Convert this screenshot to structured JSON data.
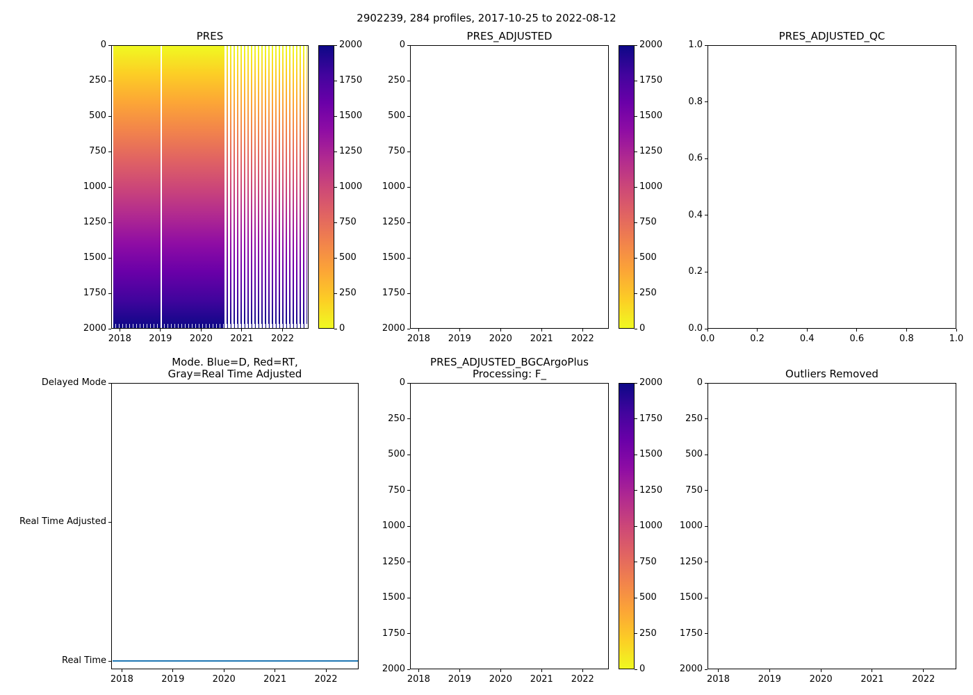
{
  "figure": {
    "suptitle": "2902239, 284 profiles, 2017-10-25 to 2022-08-12"
  },
  "palette": {
    "plasma_low_to_high": [
      "#0d0887",
      "#41049d",
      "#6a00a8",
      "#8f0da4",
      "#b12a90",
      "#cc4778",
      "#e16462",
      "#f2844b",
      "#fca636",
      "#fcce25",
      "#f0f921"
    ],
    "series_blue": "#1f77b4",
    "axis_color": "#000000",
    "background": "#ffffff"
  },
  "chart_data": [
    {
      "name": "PRES",
      "type": "heatmap",
      "title": "PRES",
      "x": {
        "range": [
          2017.79,
          2022.64
        ],
        "tick_values": [
          2018,
          2019,
          2020,
          2021,
          2022
        ],
        "tick_labels": [
          "2018",
          "2019",
          "2020",
          "2021",
          "2022"
        ]
      },
      "y": {
        "range": [
          0,
          2000
        ],
        "inverted": true,
        "tick_values": [
          0,
          250,
          500,
          750,
          1000,
          1250,
          1500,
          1750,
          2000
        ],
        "tick_labels": [
          "0",
          "250",
          "500",
          "750",
          "1000",
          "1250",
          "1500",
          "1750",
          "2000"
        ]
      },
      "colorbar": {
        "range": [
          0,
          2000
        ],
        "colormap": "plasma_r",
        "tick_values": [
          0,
          250,
          500,
          750,
          1000,
          1250,
          1500,
          1750,
          2000
        ],
        "tick_labels": [
          "0",
          "250",
          "500",
          "750",
          "1000",
          "1250",
          "1500",
          "1750",
          "2000"
        ]
      },
      "heatmap": {
        "present": true,
        "colormap": "plasma_r",
        "value_description": "pressure (dbar) increases with vertical level: 0 (yellow) at surface to 2000 (dark navy) at depth",
        "data_start": 2017.82,
        "data_end": 2022.62,
        "vertical_gap_at": 2019.0,
        "sparse_striping_from": 2020.55
      }
    },
    {
      "name": "PRES_ADJUSTED",
      "type": "heatmap",
      "title": "PRES_ADJUSTED",
      "x": {
        "range": [
          2017.79,
          2022.64
        ],
        "tick_values": [
          2018,
          2019,
          2020,
          2021,
          2022
        ],
        "tick_labels": [
          "2018",
          "2019",
          "2020",
          "2021",
          "2022"
        ]
      },
      "y": {
        "range": [
          0,
          2000
        ],
        "inverted": true,
        "tick_values": [
          0,
          250,
          500,
          750,
          1000,
          1250,
          1500,
          1750,
          2000
        ],
        "tick_labels": [
          "0",
          "250",
          "500",
          "750",
          "1000",
          "1250",
          "1500",
          "1750",
          "2000"
        ]
      },
      "colorbar": {
        "range": [
          0,
          2000
        ],
        "colormap": "plasma_r",
        "tick_values": [
          0,
          250,
          500,
          750,
          1000,
          1250,
          1500,
          1750,
          2000
        ],
        "tick_labels": [
          "0",
          "250",
          "500",
          "750",
          "1000",
          "1250",
          "1500",
          "1750",
          "2000"
        ]
      },
      "heatmap": {
        "present": false
      }
    },
    {
      "name": "PRES_ADJUSTED_QC",
      "type": "scatter",
      "title": "PRES_ADJUSTED_QC",
      "x": {
        "range": [
          0,
          1
        ],
        "tick_values": [
          0,
          0.2,
          0.4,
          0.6,
          0.8,
          1
        ],
        "tick_labels": [
          "0.0",
          "0.2",
          "0.4",
          "0.6",
          "0.8",
          "1.0"
        ]
      },
      "y": {
        "range": [
          0,
          1
        ],
        "inverted": false,
        "tick_values": [
          0,
          0.2,
          0.4,
          0.6,
          0.8,
          1
        ],
        "tick_labels": [
          "0.0",
          "0.2",
          "0.4",
          "0.6",
          "0.8",
          "1.0"
        ]
      },
      "points": []
    },
    {
      "name": "MODE",
      "type": "line",
      "title_lines": [
        "Mode. Blue=D, Red=RT,",
        "Gray=Real Time Adjusted"
      ],
      "x": {
        "range": [
          2017.79,
          2022.64
        ],
        "tick_values": [
          2018,
          2019,
          2020,
          2021,
          2022
        ],
        "tick_labels": [
          "2018",
          "2019",
          "2020",
          "2021",
          "2022"
        ]
      },
      "y": {
        "range": [
          -0.06,
          2
        ],
        "inverted": false,
        "tick_values": [
          2,
          1,
          0
        ],
        "tick_labels": [
          "Delayed Mode",
          "Real Time Adjusted",
          "Real Time"
        ]
      },
      "series": [
        {
          "label": "Real Time",
          "y_value": 0,
          "x_start": 2017.82,
          "x_end": 2022.62,
          "color": "#1f77b4",
          "linewidth": 2
        }
      ]
    },
    {
      "name": "PRES_ADJUSTED_BGCArgoPlus",
      "type": "heatmap",
      "title_lines": [
        "PRES_ADJUSTED_BGCArgoPlus",
        "Processing: F_"
      ],
      "x": {
        "range": [
          2017.79,
          2022.64
        ],
        "tick_values": [
          2018,
          2019,
          2020,
          2021,
          2022
        ],
        "tick_labels": [
          "2018",
          "2019",
          "2020",
          "2021",
          "2022"
        ]
      },
      "y": {
        "range": [
          0,
          2000
        ],
        "inverted": true,
        "tick_values": [
          0,
          250,
          500,
          750,
          1000,
          1250,
          1500,
          1750,
          2000
        ],
        "tick_labels": [
          "0",
          "250",
          "500",
          "750",
          "1000",
          "1250",
          "1500",
          "1750",
          "2000"
        ]
      },
      "colorbar": {
        "range": [
          0,
          2000
        ],
        "colormap": "plasma_r",
        "tick_values": [
          0,
          250,
          500,
          750,
          1000,
          1250,
          1500,
          1750,
          2000
        ],
        "tick_labels": [
          "0",
          "250",
          "500",
          "750",
          "1000",
          "1250",
          "1500",
          "1750",
          "2000"
        ]
      },
      "heatmap": {
        "present": false
      }
    },
    {
      "name": "OUTLIERS_REMOVED",
      "type": "scatter",
      "title": "Outliers Removed",
      "x": {
        "range": [
          2017.79,
          2022.64
        ],
        "tick_values": [
          2018,
          2019,
          2020,
          2021,
          2022
        ],
        "tick_labels": [
          "2018",
          "2019",
          "2020",
          "2021",
          "2022"
        ]
      },
      "y": {
        "range": [
          0,
          2000
        ],
        "inverted": true,
        "tick_values": [
          0,
          250,
          500,
          750,
          1000,
          1250,
          1500,
          1750,
          2000
        ],
        "tick_labels": [
          "0",
          "250",
          "500",
          "750",
          "1000",
          "1250",
          "1500",
          "1750",
          "2000"
        ]
      },
      "points": []
    }
  ]
}
